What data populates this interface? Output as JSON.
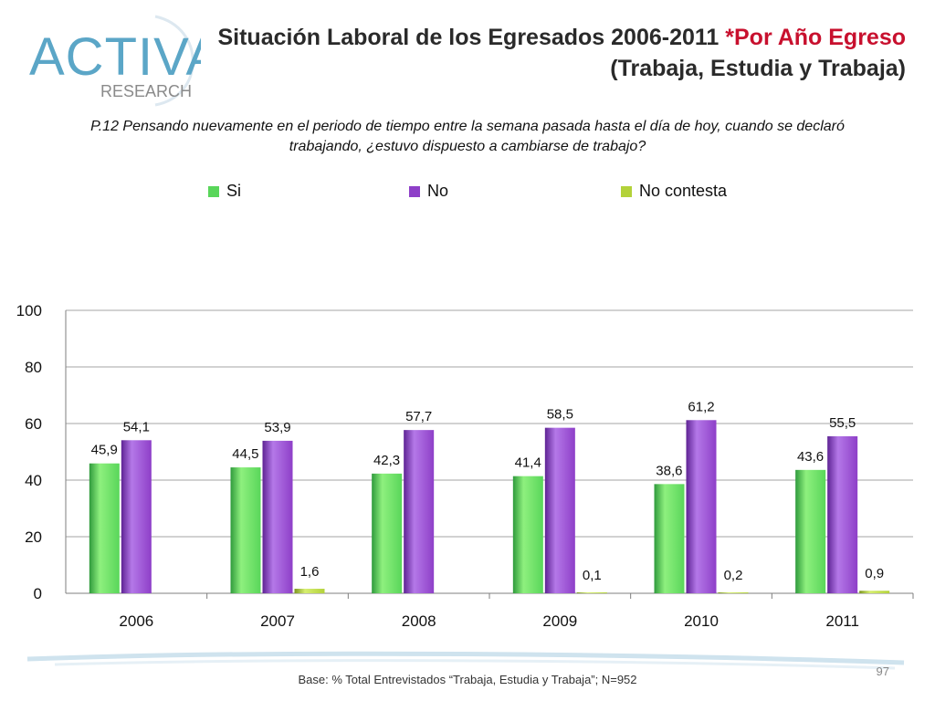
{
  "logo": {
    "brand": "ACTIVA",
    "sub": "RESEARCH"
  },
  "title": {
    "main": "Situación Laboral de los Egresados 2006-2011 ",
    "accent": "*Por Año Egreso",
    "line2": "(Trabaja, Estudia y Trabaja)"
  },
  "question": {
    "line1": "P.12 Pensando nuevamente en el periodo de tiempo entre la semana pasada hasta el día de hoy, cuando se declaró",
    "line2": "trabajando, ¿estuvo dispuesto a cambiarse de trabajo?"
  },
  "chart_data": {
    "type": "bar",
    "title": "P.12 Pensando nuevamente en el periodo de tiempo entre la semana pasada hasta el día de hoy, cuando se declaró trabajando, ¿estuvo dispuesto a cambiarse de trabajo?",
    "categories": [
      "2006",
      "2007",
      "2008",
      "2009",
      "2010",
      "2011"
    ],
    "series": [
      {
        "name": "Si",
        "color": "#59d65a",
        "values": [
          45.9,
          44.5,
          42.3,
          41.4,
          38.6,
          43.6
        ],
        "labels": [
          "45,9",
          "44,5",
          "42,3",
          "41,4",
          "38,6",
          "43,6"
        ]
      },
      {
        "name": "No",
        "color": "#8e3fc8",
        "values": [
          54.1,
          53.9,
          57.7,
          58.5,
          61.2,
          55.5
        ],
        "labels": [
          "54,1",
          "53,9",
          "57,7",
          "58,5",
          "61,2",
          "55,5"
        ]
      },
      {
        "name": "No contesta",
        "color": "#b3d23a",
        "values": [
          0,
          1.6,
          0,
          0.1,
          0.2,
          0.9
        ],
        "labels": [
          "",
          "1,6",
          "",
          "0,1",
          "0,2",
          "0,9"
        ]
      }
    ],
    "ylim": [
      0,
      100
    ],
    "yticks": [
      0,
      20,
      40,
      60,
      80,
      100
    ],
    "xlabel": "",
    "ylabel": "",
    "grid": true,
    "legend": "top"
  },
  "footer": {
    "base": "Base: % Total Entrevistados “Trabaja, Estudia y Trabaja”; N=952",
    "page": "97"
  }
}
